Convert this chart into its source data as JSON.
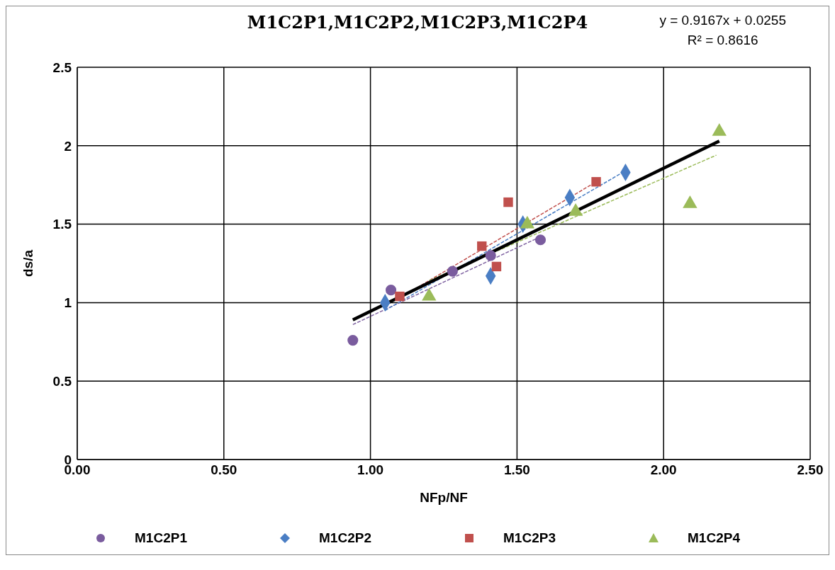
{
  "chart_data": {
    "type": "scatter",
    "title": "M1C2P1,M1C2P2,M1C2P3,M1C2P4",
    "xlabel": "NFp/NF",
    "ylabel": "ds/a",
    "annotations": [
      "y = 0.9167x + 0.0255",
      "R² = 0.8616"
    ],
    "xlim": [
      0,
      2.5
    ],
    "xticks": [
      {
        "value": 0,
        "label": "0.00"
      },
      {
        "value": 0.5,
        "label": "0.50"
      },
      {
        "value": 1,
        "label": "1.00"
      },
      {
        "value": 1.5,
        "label": "1.50"
      },
      {
        "value": 2,
        "label": "2.00"
      },
      {
        "value": 2.5,
        "label": "2.50"
      }
    ],
    "ylim": [
      0,
      2.5
    ],
    "yticks": [
      0,
      0.5,
      1,
      1.5,
      2,
      2.5
    ],
    "grid": true,
    "legend": "bottom",
    "series": [
      {
        "name": "M1C2P1",
        "color": "#7a5c9e",
        "marker": "circle",
        "x": [
          0.94,
          1.07,
          1.28,
          1.41,
          1.58
        ],
        "values": [
          0.76,
          1.08,
          1.2,
          1.3,
          1.4
        ]
      },
      {
        "name": "M1C2P2",
        "color": "#4a7ec4",
        "marker": "diamond",
        "x": [
          1.05,
          1.41,
          1.52,
          1.68,
          1.87
        ],
        "values": [
          1.0,
          1.17,
          1.5,
          1.67,
          1.83
        ]
      },
      {
        "name": "M1C2P3",
        "color": "#c0504d",
        "marker": "square",
        "x": [
          1.1,
          1.38,
          1.43,
          1.47,
          1.77
        ],
        "values": [
          1.04,
          1.36,
          1.23,
          1.64,
          1.77
        ]
      },
      {
        "name": "M1C2P4",
        "color": "#9bbb59",
        "marker": "triangle",
        "x": [
          1.2,
          1.535,
          1.7,
          2.09,
          2.19
        ],
        "values": [
          1.04,
          1.5,
          1.58,
          1.63,
          2.09
        ]
      },
      {
        "type": "line",
        "color": "#8064a2",
        "line_style": "dashed",
        "marker": "none",
        "x": [
          0.94,
          1.58
        ],
        "values": [
          0.86,
          1.42
        ]
      },
      {
        "type": "line",
        "color": "#4a7ec4",
        "line_style": "dashed",
        "marker": "none",
        "x": [
          1.05,
          1.87
        ],
        "values": [
          0.95,
          1.84
        ]
      },
      {
        "type": "line",
        "color": "#c0504d",
        "line_style": "dashed",
        "marker": "none",
        "x": [
          1.1,
          1.77
        ],
        "values": [
          1.03,
          1.77
        ]
      },
      {
        "type": "line",
        "color": "#9bbb59",
        "line_style": "dashed",
        "marker": "none",
        "x": [
          1.2,
          2.18
        ],
        "values": [
          1.14,
          1.94
        ]
      },
      {
        "type": "line",
        "color": "#000000",
        "line_style": "solid",
        "marker": "none",
        "x": [
          0.94,
          2.19
        ],
        "values": [
          0.89,
          2.03
        ]
      }
    ]
  }
}
